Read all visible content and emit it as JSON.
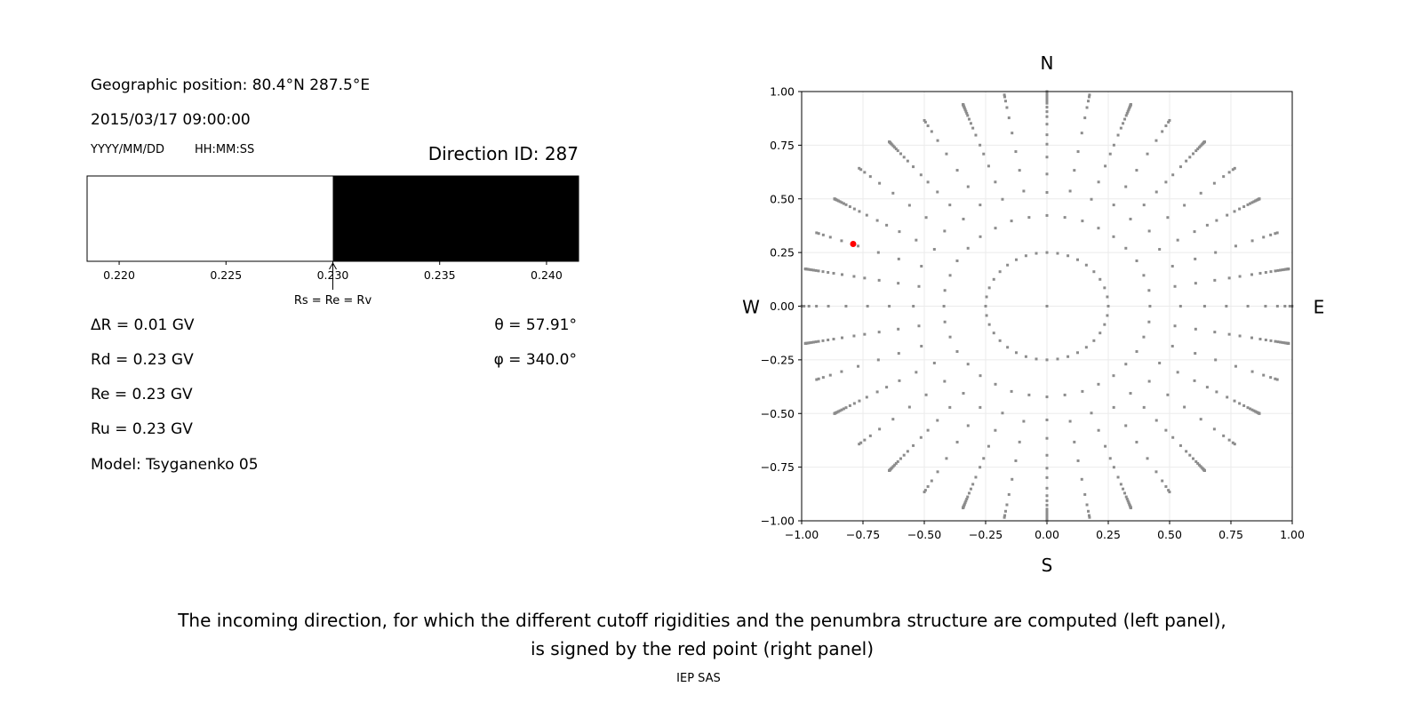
{
  "left_panel": {
    "geo_position": "Geographic position: 80.4°N 287.5°E",
    "datetime": "2015/03/17 09:00:00",
    "date_format": "YYYY/MM/DD",
    "time_format": "HH:MM:SS",
    "direction_id": "Direction ID: 287",
    "delta_r": "ΔR = 0.01 GV",
    "rd": "Rd = 0.23 GV",
    "re": "Re = 0.23 GV",
    "ru": "Ru = 0.23 GV",
    "model": "Model: Tsyganenko 05",
    "theta": "θ = 57.91°",
    "phi": "φ = 340.0°"
  },
  "chart_data": [
    {
      "type": "bar",
      "xlim": [
        0.2185,
        0.2415
      ],
      "xticks": [
        "0.220",
        "0.225",
        "0.230",
        "0.235",
        "0.240"
      ],
      "xtick_values": [
        0.22,
        0.225,
        0.23,
        0.235,
        0.24
      ],
      "segments": [
        {
          "from": 0.2185,
          "to": 0.23,
          "color": "#ffffff",
          "meaning": "allowed"
        },
        {
          "from": 0.23,
          "to": 0.2415,
          "color": "#000000",
          "meaning": "forbidden"
        }
      ],
      "annotation": {
        "text": "Rs = Re = Rv",
        "x": 0.23
      }
    },
    {
      "type": "scatter",
      "xlim": [
        -1.0,
        1.0
      ],
      "ylim": [
        -1.0,
        1.0
      ],
      "xticks": [
        "−1.00",
        "−0.75",
        "−0.50",
        "−0.25",
        "0.00",
        "0.25",
        "0.50",
        "0.75",
        "1.00"
      ],
      "yticks": [
        "1.00",
        "0.75",
        "0.50",
        "0.25",
        "0.00",
        "−0.25",
        "−0.50",
        "−0.75",
        "−1.00"
      ],
      "tick_values": [
        -1,
        -0.75,
        -0.5,
        -0.25,
        0,
        0.25,
        0.5,
        0.75,
        1
      ],
      "grid": true,
      "compass": {
        "north": "N",
        "south": "S",
        "west": "W",
        "east": "E"
      },
      "grid_point_color": "#8c8c8c",
      "highlight": {
        "x": -0.79,
        "y": 0.29,
        "color": "#ff0000"
      }
    }
  ],
  "caption": {
    "line1": "The incoming direction, for which the different cutoff rigidities and the penumbra structure are computed (left panel),",
    "line2": "is signed by the red point (right panel)"
  },
  "credit": "IEP SAS"
}
